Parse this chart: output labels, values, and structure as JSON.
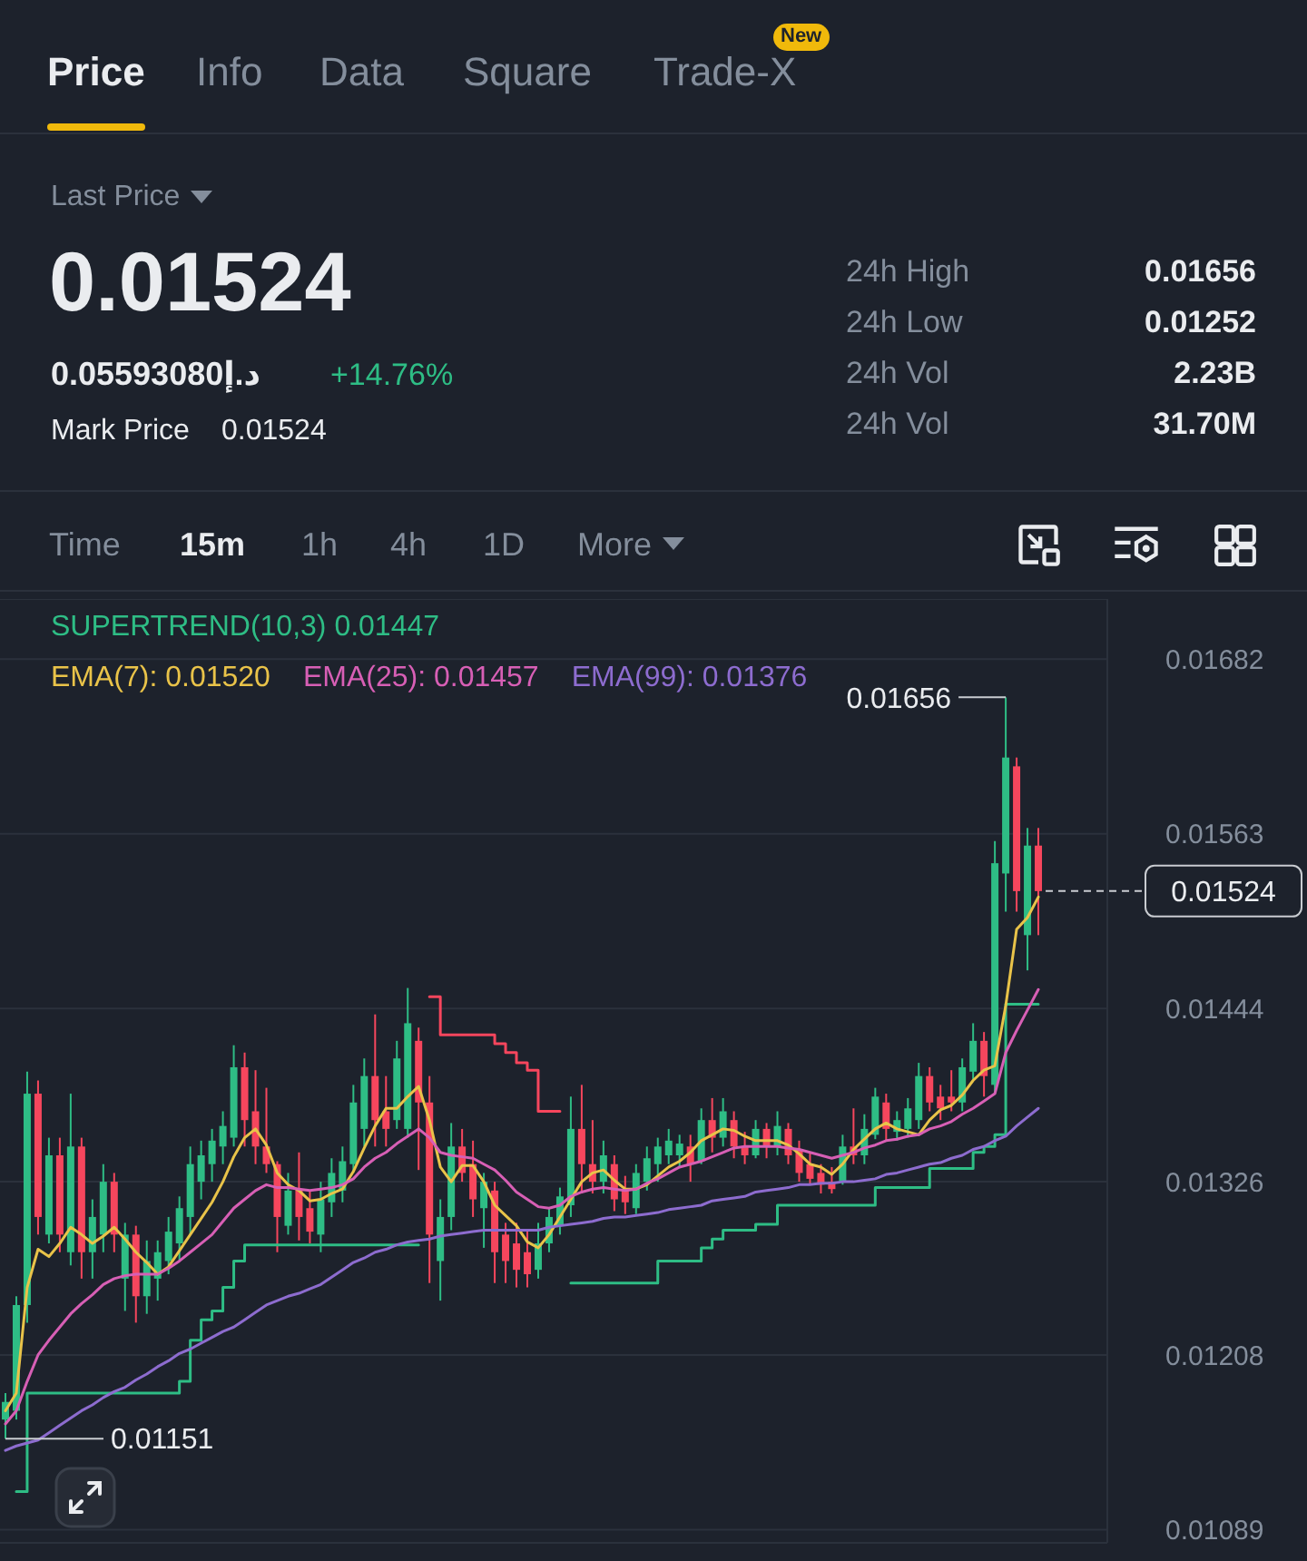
{
  "chart_data": [
    {
      "type": "other",
      "annotations": [
        "Price",
        "Info",
        "Data",
        "Square",
        "Trade-X",
        "New",
        "Last Price",
        "0.01524",
        "0.05593080د.إ",
        "+14.76%",
        "Mark Price",
        "0.01524",
        "24h High",
        "0.01656",
        "24h Low",
        "0.01252",
        "24h Vol",
        "2.23B",
        "24h Vol",
        "31.70M",
        "Time",
        "15m",
        "1h",
        "4h",
        "1D",
        "More"
      ]
    },
    {
      "type": "candlestick",
      "categories": [
        null,
        null,
        null,
        null,
        null,
        null,
        null,
        null,
        null,
        null,
        null,
        null,
        null,
        null,
        null,
        null,
        null,
        null,
        null,
        null,
        null,
        null,
        null,
        null,
        null,
        null,
        null,
        null,
        null,
        null,
        null,
        null,
        null,
        null,
        null,
        null,
        null,
        null,
        null,
        null,
        null,
        null,
        null,
        null,
        null,
        null,
        null,
        null,
        null,
        null,
        null,
        null,
        null,
        null,
        null,
        null,
        null,
        null,
        null,
        null,
        null,
        null,
        null,
        null,
        null,
        null,
        null,
        null,
        null,
        null,
        null,
        null,
        null,
        null,
        null,
        null,
        null,
        null,
        null,
        null,
        null,
        null,
        null,
        null,
        null,
        null,
        null,
        null,
        null,
        null,
        null,
        null,
        null,
        null,
        null,
        null
      ],
      "ohlc": [
        [
          0.01164,
          0.01182,
          0.01151,
          0.01176
        ],
        [
          0.0117,
          0.01248,
          0.01164,
          0.01242
        ],
        [
          0.01242,
          0.01401,
          0.0123,
          0.01386
        ],
        [
          0.01386,
          0.01395,
          0.0129,
          0.01302
        ],
        [
          0.0129,
          0.01356,
          0.01284,
          0.01344
        ],
        [
          0.01344,
          0.01356,
          0.01278,
          0.0129
        ],
        [
          0.01278,
          0.01386,
          0.01269,
          0.0135
        ],
        [
          0.0135,
          0.01356,
          0.0126,
          0.01278
        ],
        [
          0.01278,
          0.01314,
          0.0126,
          0.01302
        ],
        [
          0.0129,
          0.01338,
          0.01278,
          0.01326
        ],
        [
          0.01326,
          0.01332,
          0.01278,
          0.0129
        ],
        [
          0.0126,
          0.01298,
          0.01238,
          0.0129
        ],
        [
          0.0129,
          0.01296,
          0.0123,
          0.01248
        ],
        [
          0.01248,
          0.01286,
          0.01236,
          0.01272
        ],
        [
          0.0126,
          0.01286,
          0.01245,
          0.01278
        ],
        [
          0.01272,
          0.01302,
          0.01263,
          0.01292
        ],
        [
          0.01284,
          0.01316,
          0.01272,
          0.01308
        ],
        [
          0.01302,
          0.0135,
          0.0129,
          0.01338
        ],
        [
          0.01326,
          0.01354,
          0.01314,
          0.01344
        ],
        [
          0.01338,
          0.01362,
          0.01326,
          0.01354
        ],
        [
          0.0135,
          0.01374,
          0.01338,
          0.01364
        ],
        [
          0.01356,
          0.01419,
          0.0135,
          0.01404
        ],
        [
          0.01404,
          0.01414,
          0.0135,
          0.01368
        ],
        [
          0.01374,
          0.01402,
          0.01338,
          0.0135
        ],
        [
          0.0135,
          0.0139,
          0.01332,
          0.01338
        ],
        [
          0.01338,
          0.0134,
          0.01278,
          0.01302
        ],
        [
          0.01296,
          0.01332,
          0.0129,
          0.0132
        ],
        [
          0.0132,
          0.01346,
          0.01286,
          0.01302
        ],
        [
          0.01308,
          0.0132,
          0.01284,
          0.01292
        ],
        [
          0.0129,
          0.01326,
          0.01278,
          0.01314
        ],
        [
          0.01312,
          0.01342,
          0.01302,
          0.01332
        ],
        [
          0.0132,
          0.0135,
          0.01312,
          0.0134
        ],
        [
          0.01338,
          0.01392,
          0.01332,
          0.0138
        ],
        [
          0.01362,
          0.0141,
          0.0135,
          0.01398
        ],
        [
          0.01398,
          0.0144,
          0.0135,
          0.01368
        ],
        [
          0.01374,
          0.01398,
          0.0135,
          0.01362
        ],
        [
          0.01368,
          0.01422,
          0.01362,
          0.0141
        ],
        [
          0.01362,
          0.01458,
          0.01356,
          0.01434
        ],
        [
          0.01422,
          0.01431,
          0.01334,
          0.0138
        ],
        [
          0.0138,
          0.01398,
          0.01257,
          0.0129
        ],
        [
          0.01272,
          0.01314,
          0.01245,
          0.01302
        ],
        [
          0.01302,
          0.01366,
          0.01293,
          0.0135
        ],
        [
          0.0135,
          0.01362,
          0.01326,
          0.01332
        ],
        [
          0.01338,
          0.01354,
          0.01302,
          0.01314
        ],
        [
          0.01308,
          0.01332,
          0.01281,
          0.01326
        ],
        [
          0.0132,
          0.01326,
          0.01257,
          0.01278
        ],
        [
          0.0129,
          0.01298,
          0.01257,
          0.01272
        ],
        [
          0.01284,
          0.01298,
          0.01254,
          0.01266
        ],
        [
          0.01278,
          0.01293,
          0.01254,
          0.01263
        ],
        [
          0.01266,
          0.01298,
          0.0126,
          0.01284
        ],
        [
          0.01284,
          0.01308,
          0.01278,
          0.01302
        ],
        [
          0.01296,
          0.01322,
          0.0129,
          0.01316
        ],
        [
          0.0131,
          0.01384,
          0.01302,
          0.01362
        ],
        [
          0.01362,
          0.01392,
          0.01318,
          0.01338
        ],
        [
          0.01338,
          0.01368,
          0.01318,
          0.01326
        ],
        [
          0.01326,
          0.01354,
          0.01318,
          0.01344
        ],
        [
          0.01338,
          0.01344,
          0.01306,
          0.01314
        ],
        [
          0.0132,
          0.0133,
          0.01304,
          0.01312
        ],
        [
          0.01308,
          0.01338,
          0.01304,
          0.01332
        ],
        [
          0.01326,
          0.0135,
          0.0132,
          0.01342
        ],
        [
          0.01338,
          0.01356,
          0.01326,
          0.0135
        ],
        [
          0.01344,
          0.01362,
          0.01338,
          0.01354
        ],
        [
          0.01344,
          0.01358,
          0.01336,
          0.01352
        ],
        [
          0.0135,
          0.01358,
          0.01326,
          0.01338
        ],
        [
          0.0134,
          0.01376,
          0.01338,
          0.01368
        ],
        [
          0.01368,
          0.01383,
          0.01346,
          0.01356
        ],
        [
          0.01356,
          0.01383,
          0.0135,
          0.01374
        ],
        [
          0.01368,
          0.01374,
          0.01342,
          0.0135
        ],
        [
          0.0135,
          0.0136,
          0.01338,
          0.01344
        ],
        [
          0.01344,
          0.01368,
          0.01342,
          0.01362
        ],
        [
          0.01362,
          0.01366,
          0.01342,
          0.0135
        ],
        [
          0.0135,
          0.01374,
          0.01344,
          0.01364
        ],
        [
          0.01362,
          0.01366,
          0.01338,
          0.01344
        ],
        [
          0.01348,
          0.01354,
          0.01326,
          0.01332
        ],
        [
          0.01338,
          0.01346,
          0.01324,
          0.01328
        ],
        [
          0.01332,
          0.01338,
          0.01318,
          0.01324
        ],
        [
          0.01326,
          0.01336,
          0.01318,
          0.01321
        ],
        [
          0.01326,
          0.01358,
          0.01324,
          0.0135
        ],
        [
          0.0135,
          0.01376,
          0.01338,
          0.01344
        ],
        [
          0.01344,
          0.01372,
          0.01338,
          0.01362
        ],
        [
          0.01358,
          0.0139,
          0.01355,
          0.01384
        ],
        [
          0.0138,
          0.01386,
          0.01354,
          0.01362
        ],
        [
          0.0136,
          0.01374,
          0.01354,
          0.01368
        ],
        [
          0.01362,
          0.01383,
          0.01356,
          0.01376
        ],
        [
          0.01368,
          0.01407,
          0.01362,
          0.01398
        ],
        [
          0.01398,
          0.01404,
          0.01374,
          0.0138
        ],
        [
          0.01384,
          0.01392,
          0.01368,
          0.01376
        ],
        [
          0.01384,
          0.01402,
          0.01374,
          0.0138
        ],
        [
          0.0138,
          0.0141,
          0.01374,
          0.01404
        ],
        [
          0.01401,
          0.01434,
          0.01395,
          0.01422
        ],
        [
          0.01422,
          0.01428,
          0.01384,
          0.01398
        ],
        [
          0.01392,
          0.01558,
          0.01386,
          0.01543
        ],
        [
          0.01536,
          0.01656,
          0.0151,
          0.01615
        ],
        [
          0.01609,
          0.01615,
          0.0151,
          0.01524
        ],
        [
          0.01494,
          0.01567,
          0.0147,
          0.01555
        ],
        [
          0.01555,
          0.01567,
          0.01494,
          0.01524
        ]
      ],
      "colors": [
        "#2ebd85",
        "#2ebd85",
        "#2ebd85",
        "#f6465d",
        "#2ebd85",
        "#f6465d",
        "#2ebd85",
        "#f6465d",
        "#2ebd85",
        "#2ebd85",
        "#f6465d",
        "#2ebd85",
        "#f6465d",
        "#2ebd85",
        "#2ebd85",
        "#2ebd85",
        "#2ebd85",
        "#2ebd85",
        "#2ebd85",
        "#2ebd85",
        "#2ebd85",
        "#2ebd85",
        "#f6465d",
        "#f6465d",
        "#f6465d",
        "#f6465d",
        "#2ebd85",
        "#f6465d",
        "#f6465d",
        "#2ebd85",
        "#2ebd85",
        "#2ebd85",
        "#2ebd85",
        "#2ebd85",
        "#f6465d",
        "#f6465d",
        "#2ebd85",
        "#2ebd85",
        "#f6465d",
        "#f6465d",
        "#2ebd85",
        "#2ebd85",
        "#f6465d",
        "#f6465d",
        "#2ebd85",
        "#f6465d",
        "#f6465d",
        "#f6465d",
        "#f6465d",
        "#2ebd85",
        "#2ebd85",
        "#2ebd85",
        "#2ebd85",
        "#f6465d",
        "#f6465d",
        "#2ebd85",
        "#f6465d",
        "#f6465d",
        "#2ebd85",
        "#2ebd85",
        "#2ebd85",
        "#2ebd85",
        "#2ebd85",
        "#f6465d",
        "#2ebd85",
        "#f6465d",
        "#2ebd85",
        "#f6465d",
        "#f6465d",
        "#2ebd85",
        "#f6465d",
        "#2ebd85",
        "#f6465d",
        "#f6465d",
        "#f6465d",
        "#f6465d",
        "#f6465d",
        "#2ebd85",
        "#f6465d",
        "#2ebd85",
        "#2ebd85",
        "#f6465d",
        "#2ebd85",
        "#2ebd85",
        "#2ebd85",
        "#f6465d",
        "#f6465d",
        "#f6465d",
        "#2ebd85",
        "#2ebd85",
        "#f6465d",
        "#2ebd85",
        "#2ebd85",
        "#f6465d",
        "#2ebd85",
        "#f6465d"
      ],
      "series": [
        {
          "name": "SUPERTREND(10,3) 0.01447",
          "color": "#2ebd85",
          "type": "step",
          "values": [
            null,
            0.01115,
            0.01182,
            0.01182,
            0.01182,
            0.01182,
            0.01182,
            0.01182,
            0.01182,
            0.01182,
            0.01182,
            0.01182,
            0.01182,
            0.01182,
            0.01182,
            0.01182,
            0.0119,
            0.01218,
            0.01232,
            0.01238,
            0.01254,
            0.01272,
            0.01283,
            0.01283,
            0.01283,
            0.01283,
            0.01283,
            0.01283,
            0.01283,
            0.01283,
            0.01283,
            0.01283,
            0.01283,
            0.01283,
            0.01283,
            0.01283,
            0.01283,
            0.01283,
            0.01283,
            null,
            null,
            null,
            null,
            null,
            null,
            null,
            null,
            null,
            null,
            null,
            null,
            null,
            0.01257,
            0.01257,
            0.01257,
            0.01257,
            0.01257,
            0.01257,
            0.01257,
            0.01257,
            0.01272,
            0.01272,
            0.01272,
            0.01272,
            0.01281,
            0.01287,
            0.01293,
            0.01293,
            0.01293,
            0.01297,
            0.01297,
            0.0131,
            0.0131,
            0.0131,
            0.0131,
            0.0131,
            0.0131,
            0.0131,
            0.0131,
            0.0131,
            0.01322,
            0.01322,
            0.01322,
            0.01322,
            0.01322,
            0.01335,
            0.01335,
            0.01335,
            0.01335,
            0.01346,
            0.0135,
            0.01358,
            0.01447,
            0.01447,
            0.01447,
            0.01447
          ]
        },
        {
          "color": "#f6465d",
          "type": "step",
          "values": [
            null,
            null,
            null,
            null,
            null,
            null,
            null,
            null,
            null,
            null,
            null,
            null,
            null,
            null,
            null,
            null,
            null,
            null,
            null,
            null,
            null,
            null,
            null,
            null,
            null,
            null,
            null,
            null,
            null,
            null,
            null,
            null,
            null,
            null,
            null,
            null,
            null,
            null,
            null,
            0.01452,
            0.01426,
            0.01426,
            0.01426,
            0.01426,
            0.01426,
            0.0142,
            0.01414,
            0.01407,
            0.01402,
            0.01374,
            0.01374,
            0.01374,
            null,
            null,
            null,
            null,
            null,
            null,
            null,
            null,
            null,
            null,
            null,
            null,
            null,
            null,
            null,
            null,
            null,
            null,
            null,
            null,
            null,
            null,
            null,
            null,
            null,
            null,
            null,
            null,
            null,
            null,
            null,
            null,
            null,
            null,
            null,
            null,
            null,
            null,
            null,
            null,
            null,
            null,
            null,
            null
          ]
        },
        {
          "name": "EMA(7): 0.01520",
          "color": "#e9c349",
          "type": "line",
          "values": [
            0.0117,
            0.01182,
            0.01254,
            0.0128,
            0.01275,
            0.01284,
            0.01295,
            0.0129,
            0.01284,
            0.01289,
            0.01295,
            0.01287,
            0.01278,
            0.01271,
            0.01263,
            0.01268,
            0.01279,
            0.0129,
            0.01301,
            0.01312,
            0.01326,
            0.01343,
            0.01356,
            0.01362,
            0.01351,
            0.01332,
            0.01324,
            0.0132,
            0.01313,
            0.01314,
            0.01318,
            0.01321,
            0.01333,
            0.01349,
            0.01364,
            0.01376,
            0.01376,
            0.01384,
            0.01391,
            0.01368,
            0.01336,
            0.01326,
            0.01337,
            0.01337,
            0.01326,
            0.0131,
            0.01303,
            0.01296,
            0.01285,
            0.01281,
            0.0129,
            0.01302,
            0.01314,
            0.01326,
            0.01332,
            0.01334,
            0.01327,
            0.01321,
            0.01321,
            0.01324,
            0.0133,
            0.01336,
            0.0134,
            0.01346,
            0.01354,
            0.01358,
            0.01362,
            0.01361,
            0.01357,
            0.01354,
            0.01354,
            0.01354,
            0.01351,
            0.01345,
            0.01338,
            0.01336,
            0.01331,
            0.01338,
            0.01348,
            0.01355,
            0.01362,
            0.01366,
            0.01362,
            0.0136,
            0.01358,
            0.01368,
            0.01375,
            0.01378,
            0.01385,
            0.01395,
            0.01402,
            0.01405,
            0.01446,
            0.01498,
            0.01506,
            0.0152
          ]
        },
        {
          "name": "EMA(25): 0.01457",
          "color": "#d75fb5",
          "type": "line",
          "values": [
            0.01161,
            0.0117,
            0.0119,
            0.01208,
            0.01218,
            0.01227,
            0.01236,
            0.01243,
            0.01249,
            0.01256,
            0.0126,
            0.01262,
            0.01263,
            0.01263,
            0.01263,
            0.01267,
            0.01272,
            0.01278,
            0.01284,
            0.0129,
            0.01299,
            0.01308,
            0.01314,
            0.0132,
            0.01324,
            0.01322,
            0.01322,
            0.01321,
            0.0132,
            0.01321,
            0.01322,
            0.01324,
            0.01328,
            0.01336,
            0.01342,
            0.01346,
            0.01352,
            0.01357,
            0.01362,
            0.01356,
            0.01346,
            0.01344,
            0.01343,
            0.01342,
            0.01338,
            0.01334,
            0.01327,
            0.01319,
            0.01314,
            0.01309,
            0.01308,
            0.0131,
            0.01316,
            0.01319,
            0.01321,
            0.01322,
            0.01321,
            0.0132,
            0.01321,
            0.01325,
            0.01328,
            0.01332,
            0.01336,
            0.01338,
            0.0134,
            0.01343,
            0.01346,
            0.01349,
            0.0135,
            0.0135,
            0.0135,
            0.0135,
            0.01349,
            0.01348,
            0.01346,
            0.01344,
            0.01342,
            0.01344,
            0.01346,
            0.01349,
            0.01351,
            0.01354,
            0.01355,
            0.01357,
            0.01358,
            0.01362,
            0.01364,
            0.01367,
            0.01372,
            0.01376,
            0.01381,
            0.01386,
            0.01414,
            0.01429,
            0.01443,
            0.01457
          ]
        },
        {
          "name": "EMA(99): 0.01376",
          "color": "#8d6ccf",
          "type": "line",
          "values": [
            0.01143,
            0.01146,
            0.01148,
            0.0115,
            0.01155,
            0.0116,
            0.01165,
            0.0117,
            0.01174,
            0.01179,
            0.01183,
            0.01186,
            0.01191,
            0.01195,
            0.012,
            0.01204,
            0.01209,
            0.01212,
            0.01216,
            0.0122,
            0.01224,
            0.01227,
            0.01232,
            0.01237,
            0.01242,
            0.01245,
            0.01248,
            0.0125,
            0.01253,
            0.01256,
            0.01261,
            0.01266,
            0.01271,
            0.01274,
            0.01278,
            0.0128,
            0.01283,
            0.01285,
            0.01286,
            0.01287,
            0.01289,
            0.0129,
            0.01291,
            0.01292,
            0.01293,
            0.01293,
            0.01293,
            0.01293,
            0.01293,
            0.01293,
            0.01295,
            0.01296,
            0.01297,
            0.01298,
            0.01299,
            0.01301,
            0.01302,
            0.01302,
            0.01303,
            0.01304,
            0.01305,
            0.01307,
            0.01308,
            0.01309,
            0.0131,
            0.01313,
            0.01314,
            0.01315,
            0.01316,
            0.01319,
            0.0132,
            0.01321,
            0.01322,
            0.01324,
            0.01324,
            0.01325,
            0.01325,
            0.01326,
            0.01326,
            0.01327,
            0.01328,
            0.01331,
            0.01332,
            0.01334,
            0.01336,
            0.01338,
            0.01339,
            0.01342,
            0.01344,
            0.01348,
            0.0135,
            0.01354,
            0.01357,
            0.01364,
            0.0137,
            0.01376
          ]
        }
      ],
      "ylim": [
        0.0108,
        0.01723
      ],
      "yticks": [
        0.01682,
        0.01563,
        0.01444,
        0.01326,
        0.01208,
        0.01089
      ],
      "grid": "y",
      "legend": "top left",
      "tick_labels": "y",
      "annotations": [
        "0.01656",
        "0.01151",
        "0.01524"
      ]
    }
  ]
}
